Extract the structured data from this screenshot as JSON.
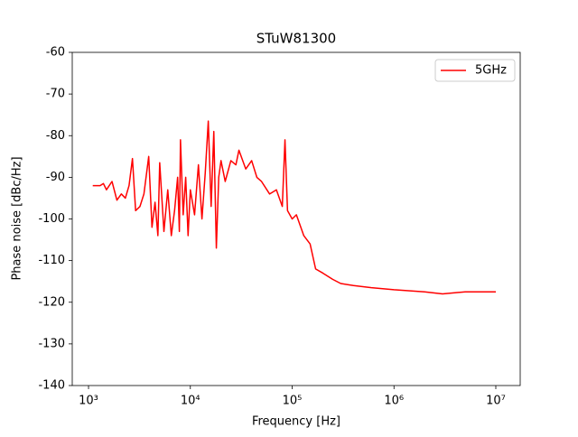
{
  "chart_data": {
    "type": "line",
    "title": "STuW81300",
    "x_label": "Frequency [Hz]",
    "y_label": "Phase noise [dBc/Hz]",
    "x_scale": "log",
    "legend_position": "upper right",
    "x": [
      1100,
      1300,
      1400,
      1500,
      1700,
      1900,
      2100,
      2300,
      2500,
      2700,
      2900,
      3200,
      3500,
      3900,
      4200,
      4500,
      4800,
      5000,
      5500,
      6000,
      6500,
      7000,
      7500,
      7800,
      8000,
      8500,
      9000,
      9500,
      10000,
      11000,
      12000,
      13000,
      14000,
      15000,
      16000,
      17000,
      18000,
      19000,
      20000,
      22000,
      25000,
      28000,
      30000,
      35000,
      40000,
      45000,
      50000,
      60000,
      70000,
      80000,
      85000,
      90000,
      100000,
      110000,
      130000,
      150000,
      170000,
      200000,
      250000,
      300000,
      400000,
      600000,
      1000000,
      2000000,
      3000000,
      5000000,
      7000000,
      10000000
    ],
    "series": [
      {
        "name": "5GHz",
        "color": "#ff0000",
        "values": [
          -92,
          -92,
          -91.5,
          -93,
          -91,
          -95.5,
          -94,
          -95,
          -92,
          -85.5,
          -98,
          -97,
          -94,
          -85,
          -102,
          -96,
          -104,
          -86.5,
          -103,
          -93,
          -104,
          -98,
          -90,
          -103,
          -81,
          -99,
          -90,
          -104,
          -93,
          -99,
          -87,
          -100,
          -89,
          -76.5,
          -97,
          -79,
          -107,
          -90,
          -86,
          -91,
          -86,
          -87,
          -83.5,
          -88,
          -86,
          -90,
          -91,
          -94,
          -93,
          -97,
          -81,
          -98,
          -100,
          -99,
          -104,
          -106,
          -112,
          -113,
          -114.5,
          -115.5,
          -116,
          -116.5,
          -117,
          -117.5,
          -118,
          -117.5,
          -117.5,
          -117.5
        ]
      }
    ],
    "xlim": [
      692,
      17360000
    ],
    "xticks": [
      {
        "value": 1000,
        "label": "10³"
      },
      {
        "value": 10000,
        "label": "10⁴"
      },
      {
        "value": 100000,
        "label": "10⁵"
      },
      {
        "value": 1000000,
        "label": "10⁶"
      },
      {
        "value": 10000000,
        "label": "10⁷"
      }
    ],
    "ylim": [
      -140,
      -60
    ],
    "yticks": [
      -140,
      -130,
      -120,
      -110,
      -100,
      -90,
      -80,
      -70,
      -60
    ],
    "grid": false
  }
}
